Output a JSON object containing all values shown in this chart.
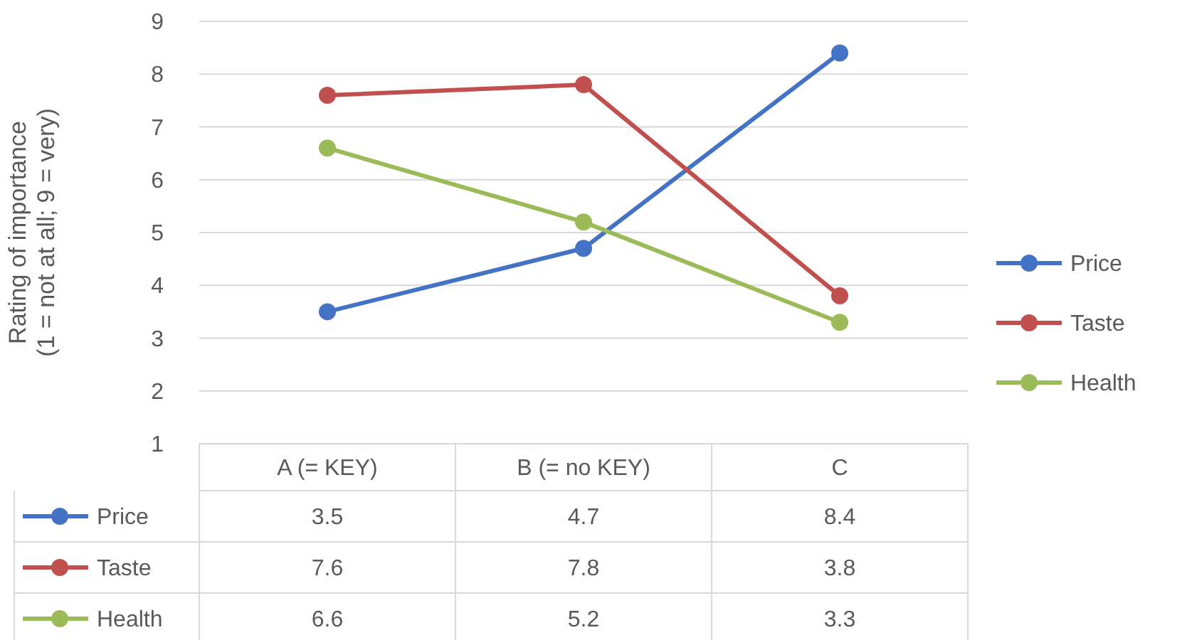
{
  "chart_data": {
    "type": "line",
    "ylabel": "Rating of importance\n(1 = not at all; 9 = very)",
    "categories": [
      "A (= KEY)",
      "B (= no KEY)",
      "C"
    ],
    "series": [
      {
        "name": "Price",
        "color": "#4472c4",
        "values": [
          3.5,
          4.7,
          8.4
        ]
      },
      {
        "name": "Taste",
        "color": "#c0504d",
        "values": [
          7.6,
          7.8,
          3.8
        ]
      },
      {
        "name": "Health",
        "color": "#9bbb59",
        "values": [
          6.6,
          5.2,
          3.3
        ]
      }
    ],
    "ylim": [
      1,
      9
    ],
    "yticks": [
      1,
      2,
      3,
      4,
      5,
      6,
      7,
      8,
      9
    ],
    "grid": "y",
    "legend": "right",
    "marker": "circle",
    "data_labels": true
  }
}
